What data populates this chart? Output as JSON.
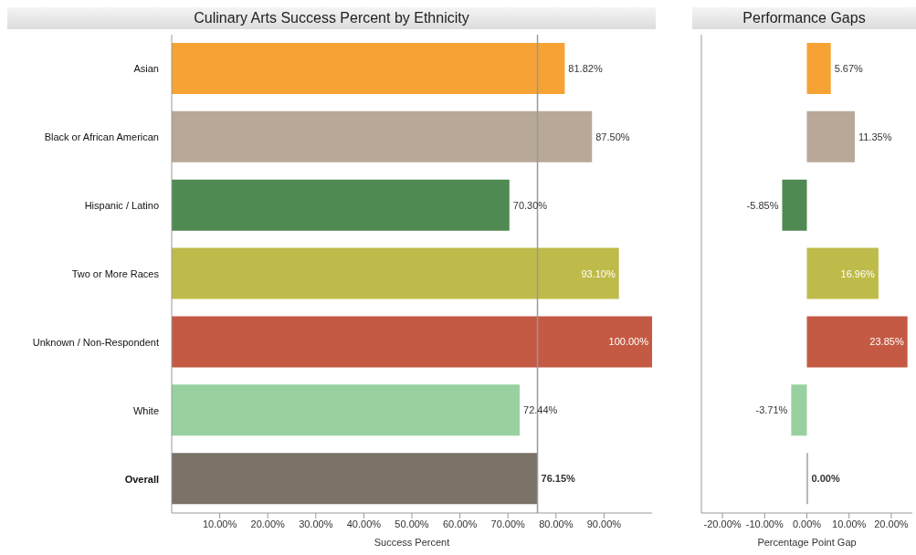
{
  "chart_data": [
    {
      "type": "bar",
      "orientation": "horizontal",
      "title": "Culinary Arts Success Percent by Ethnicity",
      "xlabel": "Success Percent",
      "categories": [
        "Asian",
        "Black or African American",
        "Hispanic / Latino",
        "Two or More Races",
        "Unknown / Non-Respondent",
        "White",
        "Overall"
      ],
      "values": [
        81.82,
        87.5,
        70.3,
        93.1,
        100,
        72.44,
        76.15
      ],
      "value_labels": [
        "81.82%",
        "87.50%",
        "70.30%",
        "93.10%",
        "100.00%",
        "72.44%",
        "76.15%"
      ],
      "colors": [
        "#f7a234",
        "#b8a898",
        "#4f8a52",
        "#bfbb4a",
        "#c45a44",
        "#98d0a0",
        "#7b7268"
      ],
      "xlim": [
        0,
        100
      ],
      "xticks": [
        {
          "value": 10,
          "label": "10.00%"
        },
        {
          "value": 20,
          "label": "20.00%"
        },
        {
          "value": 30,
          "label": "30.00%"
        },
        {
          "value": 40,
          "label": "40.00%"
        },
        {
          "value": 50,
          "label": "50.00%"
        },
        {
          "value": 60,
          "label": "60.00%"
        },
        {
          "value": 70,
          "label": "70.00%"
        },
        {
          "value": 80,
          "label": "80.00%"
        },
        {
          "value": 90,
          "label": "90.00%"
        }
      ],
      "ref_lines": [
        {
          "axis": "x",
          "value": 76.15,
          "color": "#999999"
        }
      ],
      "grid": false,
      "legend": false
    },
    {
      "type": "bar",
      "orientation": "horizontal",
      "title": "Performance Gaps",
      "xlabel": "Percentage Point Gap",
      "categories": [
        null,
        null,
        null,
        null,
        null,
        null,
        null
      ],
      "values": [
        5.67,
        11.35,
        -5.85,
        16.96,
        23.85,
        -3.71,
        0
      ],
      "value_labels": [
        "5.67%",
        "11.35%",
        "-5.85%",
        "16.96%",
        "23.85%",
        "-3.71%",
        "0.00%"
      ],
      "colors": [
        "#f7a234",
        "#b8a898",
        "#4f8a52",
        "#bfbb4a",
        "#c45a44",
        "#98d0a0",
        "#7b7268"
      ],
      "xlim": [
        -25,
        25
      ],
      "xticks": [
        {
          "value": -20,
          "label": "-20.00%"
        },
        {
          "value": -10,
          "label": "-10.00%"
        },
        {
          "value": 0,
          "label": "0.00%"
        },
        {
          "value": 10,
          "label": "10.00%"
        },
        {
          "value": 20,
          "label": "20.00%"
        }
      ],
      "tick_labels": "x",
      "grid": false,
      "legend": false
    }
  ]
}
